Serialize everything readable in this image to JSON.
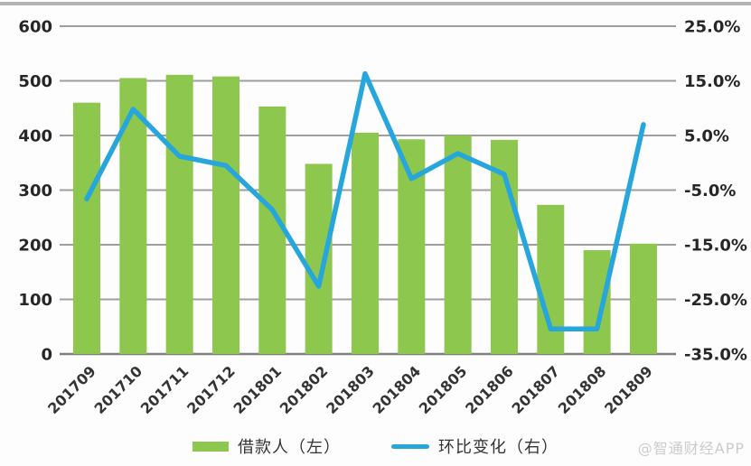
{
  "watermark": "@智通财经APP",
  "colors": {
    "bar": "#8dc74d",
    "line": "#27a6dc",
    "grid": "#9e9e9e",
    "axis": "#7f7f7f",
    "tick_label": "#262626",
    "x_label": "#333333",
    "top_bar": "#b4b4b4",
    "background": "#fdfdfd",
    "watermark": "#cbcbcb"
  },
  "chart_data": {
    "type": "bar+line combo",
    "title": "",
    "categories": [
      "201709",
      "201710",
      "201711",
      "201712",
      "201801",
      "201802",
      "201803",
      "201804",
      "201805",
      "201806",
      "201807",
      "201808",
      "201809"
    ],
    "series": [
      {
        "name": "借款人（左）",
        "type": "bar",
        "axis": "left",
        "values": [
          460,
          505,
          511,
          508,
          453,
          348,
          405,
          393,
          400,
          392,
          273,
          190,
          202
        ]
      },
      {
        "name": "环比变化（右）",
        "type": "line",
        "axis": "right",
        "values": [
          -6.6,
          9.8,
          1.2,
          -0.5,
          -8.6,
          -22.6,
          16.3,
          -2.9,
          1.7,
          -2.1,
          -30.4,
          -30.4,
          7.0
        ]
      }
    ],
    "left_axis": {
      "min": 0,
      "max": 600,
      "step": 100,
      "tick_labels": [
        "600",
        "500",
        "400",
        "300",
        "200",
        "100",
        "0"
      ]
    },
    "right_axis": {
      "min": -35,
      "max": 25,
      "step": 10,
      "tick_labels": [
        "25.0%",
        "15.0%",
        "5.0%",
        "-5.0%",
        "-15.0%",
        "-25.0%",
        "-35.0%"
      ]
    },
    "grid": true,
    "legend_position": "bottom",
    "legend": [
      {
        "label": "借款人（左）",
        "swatch": "bar"
      },
      {
        "label": "环比变化（右）",
        "swatch": "line"
      }
    ]
  }
}
